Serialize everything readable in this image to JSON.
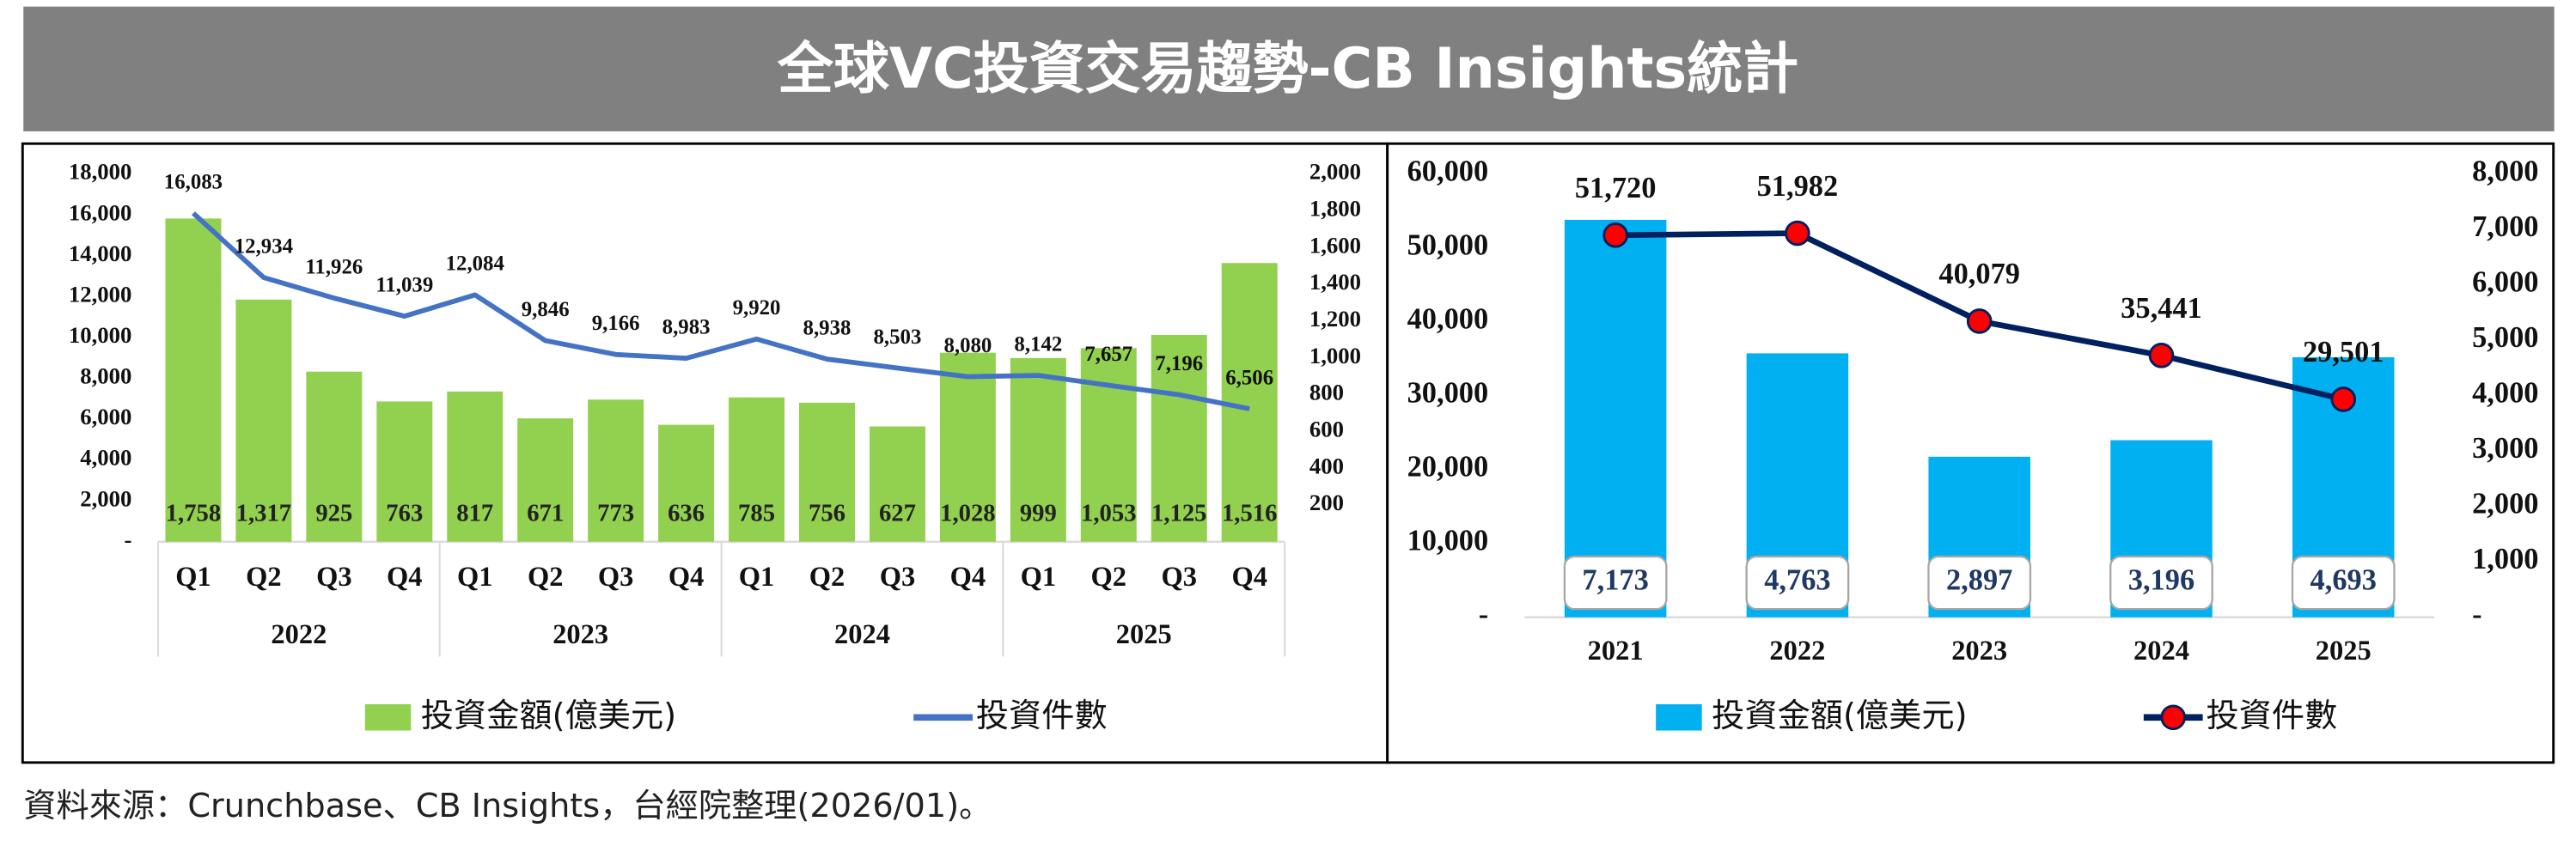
{
  "title": "全球VC投資交易趨勢-CB Insights統計",
  "chart_data": [
    {
      "type": "combo",
      "categories": [
        "Q1",
        "Q2",
        "Q3",
        "Q4",
        "Q1",
        "Q2",
        "Q3",
        "Q4",
        "Q1",
        "Q2",
        "Q3",
        "Q4",
        "Q1",
        "Q2",
        "Q3",
        "Q4"
      ],
      "groups": [
        "2022",
        "2023",
        "2024",
        "2025"
      ],
      "series": [
        {
          "name": "投資金額(億美元)",
          "type": "bar",
          "axis": "y2",
          "color": "#92d050",
          "values": [
            1758,
            1317,
            925,
            763,
            817,
            671,
            773,
            636,
            785,
            756,
            627,
            1028,
            999,
            1053,
            1125,
            1516
          ],
          "value_labels": [
            "1,758",
            "1,317",
            "925",
            "763",
            "817",
            "671",
            "773",
            "636",
            "785",
            "756",
            "627",
            "1,028",
            "999",
            "1,053",
            "1,125",
            "1,516"
          ]
        },
        {
          "name": "投資件數",
          "type": "line",
          "color": "#4472c4",
          "values": [
            16083,
            12934,
            11926,
            11039,
            12084,
            9846,
            9166,
            8983,
            9920,
            8938,
            8503,
            8080,
            8142,
            7657,
            7196,
            6506
          ],
          "value_labels": [
            "16,083",
            "12,934",
            "11,926",
            "11,039",
            "12,084",
            "9,846",
            "9,166",
            "8,983",
            "9,920",
            "8,938",
            "8,503",
            "8,080",
            "8,142",
            "7,657",
            "7,196",
            "6,506"
          ]
        }
      ],
      "ylim": [
        0,
        18000
      ],
      "yticks": [
        {
          "value": 0,
          "label": "-"
        },
        {
          "value": 2000,
          "label": "2,000"
        },
        {
          "value": 4000,
          "label": "4,000"
        },
        {
          "value": 6000,
          "label": "6,000"
        },
        {
          "value": 8000,
          "label": "8,000"
        },
        {
          "value": 10000,
          "label": "10,000"
        },
        {
          "value": 12000,
          "label": "12,000"
        },
        {
          "value": 14000,
          "label": "14,000"
        },
        {
          "value": 16000,
          "label": "16,000"
        },
        {
          "value": 18000,
          "label": "18,000"
        }
      ],
      "y2lim": [
        0,
        2000
      ],
      "y2ticks": [
        200,
        400,
        600,
        800,
        {
          "value": 1000,
          "label": "1,000"
        },
        {
          "value": 1200,
          "label": "1,200"
        },
        {
          "value": 1400,
          "label": "1,400"
        },
        {
          "value": 1600,
          "label": "1,600"
        },
        {
          "value": 1800,
          "label": "1,800"
        },
        {
          "value": 2000,
          "label": "2,000"
        }
      ],
      "legend": "bottom",
      "grid": false
    },
    {
      "type": "combo",
      "categories": [
        "2021",
        "2022",
        "2023",
        "2024",
        "2025"
      ],
      "series": [
        {
          "name": "投資金額(億美元)",
          "type": "bar",
          "axis": "y2",
          "color": "#00b0f0",
          "label_box": true,
          "values": [
            7173,
            4763,
            2897,
            3196,
            4693
          ],
          "value_labels": [
            "7,173",
            "4,763",
            "2,897",
            "3,196",
            "4,693"
          ]
        },
        {
          "name": "投資件數",
          "type": "line",
          "color": "#002060",
          "marker": "circle",
          "marker_color": "#ff0000",
          "values": [
            51720,
            51982,
            40079,
            35441,
            29501
          ],
          "value_labels": [
            "51,720",
            "51,982",
            "40,079",
            "35,441",
            "29,501"
          ]
        }
      ],
      "ylim": [
        0,
        60000
      ],
      "yticks": [
        {
          "value": 0,
          "label": "-"
        },
        {
          "value": 10000,
          "label": "10,000"
        },
        {
          "value": 20000,
          "label": "20,000"
        },
        {
          "value": 30000,
          "label": "30,000"
        },
        {
          "value": 40000,
          "label": "40,000"
        },
        {
          "value": 50000,
          "label": "50,000"
        },
        {
          "value": 60000,
          "label": "60,000"
        }
      ],
      "y2lim": [
        0,
        8000
      ],
      "y2ticks": [
        {
          "value": 0,
          "label": "-"
        },
        {
          "value": 1000,
          "label": "1,000"
        },
        {
          "value": 2000,
          "label": "2,000"
        },
        {
          "value": 3000,
          "label": "3,000"
        },
        {
          "value": 4000,
          "label": "4,000"
        },
        {
          "value": 5000,
          "label": "5,000"
        },
        {
          "value": 6000,
          "label": "6,000"
        },
        {
          "value": 7000,
          "label": "7,000"
        },
        {
          "value": 8000,
          "label": "8,000"
        }
      ],
      "legend": "bottom",
      "grid": false
    }
  ],
  "source": "資料來源：Crunchbase、CB Insights，台經院整理(2026/01)。"
}
